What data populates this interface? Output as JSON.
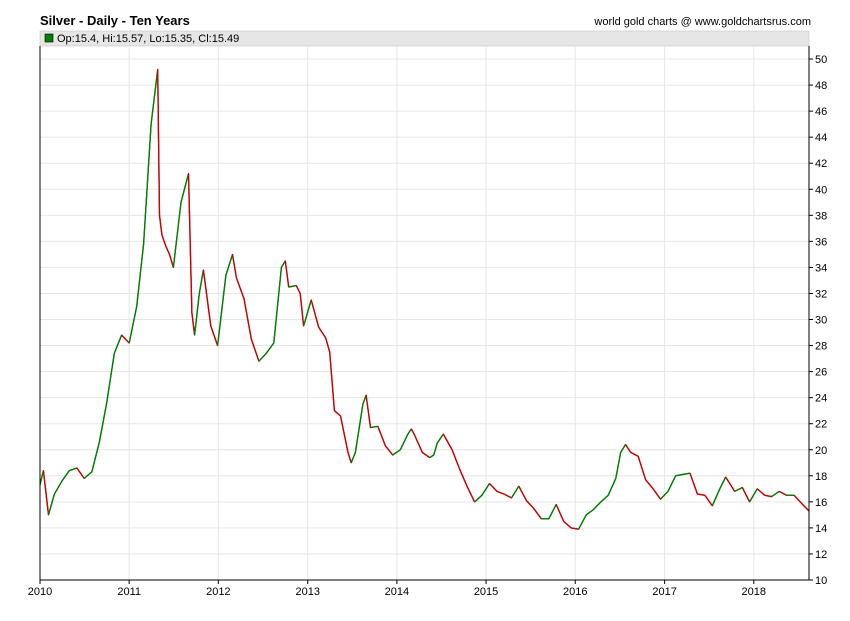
{
  "header": {
    "title": "Silver - Daily - Ten Years",
    "credit": "world gold charts @ www.goldchartsrus.com"
  },
  "legend": {
    "text": "Op:15.4, Hi:15.57, Lo:15.35, Cl:15.49",
    "swatch_color": "#008000"
  },
  "colors": {
    "up": "#008000",
    "down": "#cc0000",
    "grid": "#e6e6e6",
    "axis": "#000000",
    "legend_bg": "#e6e6e6"
  },
  "chart_data": {
    "type": "line",
    "title": "Silver - Daily - Ten Years",
    "xlabel": "",
    "ylabel": "",
    "x_ticks": [
      "2010",
      "2011",
      "2012",
      "2013",
      "2014",
      "2015",
      "2016",
      "2017",
      "2018"
    ],
    "y_ticks": [
      10,
      12,
      14,
      16,
      18,
      20,
      22,
      24,
      26,
      28,
      30,
      32,
      34,
      36,
      38,
      40,
      42,
      44,
      46,
      48,
      50
    ],
    "xlim": [
      "2010-01-01",
      "2018-08-15"
    ],
    "ylim": [
      10,
      51
    ],
    "y_axis_side": "right",
    "grid": true,
    "legend_position": "top-left",
    "series": [
      {
        "x": [
          "2010-01-01",
          "2010-01-15",
          "2010-02-05",
          "2010-03-01",
          "2010-04-01",
          "2010-05-01",
          "2010-06-01",
          "2010-07-01",
          "2010-08-01",
          "2010-09-01",
          "2010-10-01",
          "2010-11-01",
          "2010-12-01",
          "2011-01-01",
          "2011-02-01",
          "2011-03-01",
          "2011-04-01",
          "2011-04-28",
          "2011-05-05",
          "2011-05-15",
          "2011-06-01",
          "2011-06-15",
          "2011-07-01",
          "2011-08-01",
          "2011-08-15",
          "2011-09-01",
          "2011-09-15",
          "2011-09-26",
          "2011-10-15",
          "2011-11-01",
          "2011-12-01",
          "2011-12-29",
          "2012-02-01",
          "2012-02-28",
          "2012-03-15",
          "2012-04-15",
          "2012-05-15",
          "2012-06-15",
          "2012-07-15",
          "2012-08-15",
          "2012-09-15",
          "2012-10-01",
          "2012-10-15",
          "2012-11-15",
          "2012-12-01",
          "2012-12-15",
          "2013-01-15",
          "2013-02-15",
          "2013-03-15",
          "2013-04-01",
          "2013-04-20",
          "2013-05-15",
          "2013-06-15",
          "2013-06-28",
          "2013-07-15",
          "2013-08-15",
          "2013-08-28",
          "2013-09-15",
          "2013-10-15",
          "2013-11-15",
          "2013-12-15",
          "2014-01-15",
          "2014-02-15",
          "2014-03-01",
          "2014-03-15",
          "2014-04-15",
          "2014-05-15",
          "2014-06-01",
          "2014-06-15",
          "2014-07-10",
          "2014-08-15",
          "2014-09-15",
          "2014-10-15",
          "2014-11-15",
          "2014-12-15",
          "2015-01-15",
          "2015-02-15",
          "2015-03-15",
          "2015-04-15",
          "2015-05-15",
          "2015-06-15",
          "2015-07-15",
          "2015-08-15",
          "2015-09-15",
          "2015-10-15",
          "2015-11-15",
          "2015-12-15",
          "2016-01-15",
          "2016-02-15",
          "2016-03-15",
          "2016-04-15",
          "2016-05-15",
          "2016-06-15",
          "2016-07-05",
          "2016-07-25",
          "2016-08-15",
          "2016-09-15",
          "2016-10-15",
          "2016-11-15",
          "2016-12-15",
          "2017-01-15",
          "2017-02-15",
          "2017-03-15",
          "2017-04-15",
          "2017-05-15",
          "2017-06-15",
          "2017-07-15",
          "2017-08-15",
          "2017-09-08",
          "2017-10-15",
          "2017-11-15",
          "2017-12-15",
          "2018-01-15",
          "2018-02-15",
          "2018-03-15",
          "2018-04-15",
          "2018-05-15",
          "2018-06-15",
          "2018-07-15",
          "2018-08-15"
        ],
        "values": [
          17.3,
          18.4,
          15.0,
          16.6,
          17.6,
          18.4,
          18.6,
          17.8,
          18.3,
          20.6,
          23.6,
          27.4,
          28.8,
          28.2,
          31.0,
          35.8,
          45.0,
          49.2,
          38.0,
          36.5,
          35.6,
          35.0,
          34.0,
          39.0,
          40.0,
          41.2,
          30.5,
          28.8,
          32.0,
          33.8,
          29.5,
          28.0,
          33.4,
          35.0,
          33.2,
          31.6,
          28.5,
          26.8,
          27.4,
          28.2,
          34.0,
          34.5,
          32.5,
          32.6,
          32.0,
          29.5,
          31.5,
          29.4,
          28.6,
          27.5,
          23.0,
          22.6,
          19.8,
          19.0,
          19.8,
          23.5,
          24.2,
          21.7,
          21.8,
          20.3,
          19.6,
          20.0,
          21.2,
          21.6,
          21.1,
          19.8,
          19.4,
          19.6,
          20.5,
          21.2,
          20.0,
          18.5,
          17.2,
          16.0,
          16.5,
          17.4,
          16.8,
          16.6,
          16.3,
          17.2,
          16.1,
          15.5,
          14.7,
          14.7,
          15.8,
          14.5,
          14.0,
          13.9,
          15.0,
          15.4,
          16.0,
          16.5,
          17.8,
          19.8,
          20.4,
          19.8,
          19.5,
          17.7,
          17.0,
          16.2,
          16.8,
          18.0,
          18.1,
          18.2,
          16.6,
          16.5,
          15.7,
          17.0,
          17.9,
          16.8,
          17.1,
          16.0,
          17.0,
          16.5,
          16.4,
          16.8,
          16.5,
          16.5,
          15.9,
          15.3
        ]
      }
    ]
  }
}
